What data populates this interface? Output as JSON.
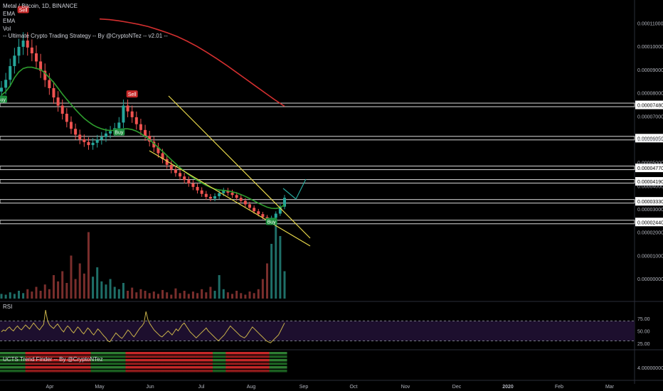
{
  "header": {
    "symbol_line": "Metal / Bitcoin, 1D, BINANCE",
    "indicator_1": "EMA",
    "indicator_2": "EMA",
    "indicator_3": "Vol",
    "indicator_4": "-- Ultimate Crypto Trading Strategy -- By @CryptoNTez -- v2.01 --"
  },
  "panes": {
    "rsi_label": "RSI",
    "trend_label": "UCTS Trend Finder -- By @CryptoNTez"
  },
  "colors": {
    "background": "#000000",
    "up": "#26a69a",
    "down": "#ef5350",
    "ema_fast": "#2e9e2e",
    "ema_slow": "#d32f2f",
    "wedge": "#e8d84a",
    "rsi_line": "#c9b24a",
    "rsi_band": "#1d0f2e",
    "buy_badge": "#1e8e3e",
    "sell_badge": "#c62828",
    "text": "#d1d4dc"
  },
  "chart_data": {
    "type": "candlestick",
    "x_labels": [
      "Apr",
      "May",
      "Jun",
      "Jul",
      "Aug",
      "Sep",
      "Oct",
      "Nov",
      "Dec",
      "2020",
      "Feb",
      "Mar"
    ],
    "price_axis": {
      "tick_labels": [
        "0.00011000",
        "0.00010000",
        "0.00009000",
        "0.00008000",
        "0.00007000",
        "0.00006000",
        "0.00005000",
        "0.00004000",
        "0.00003000",
        "0.00002000",
        "0.00001000",
        "0.00000000"
      ],
      "tick_values": [
        0.00011,
        0.0001,
        9e-05,
        8e-05,
        7e-05,
        6e-05,
        5e-05,
        4e-05,
        3e-05,
        2e-05,
        1e-05,
        0.0
      ],
      "range": [
        0.0,
        0.000112
      ]
    },
    "horizontal_levels": [
      {
        "label": "0.00007480",
        "value": 7.48e-05
      },
      {
        "label": "0.00006050",
        "value": 6.05e-05
      },
      {
        "label": "0.00004770",
        "value": 4.77e-05
      },
      {
        "label": "0.00004190",
        "value": 4.19e-05
      },
      {
        "label": "0.00003330",
        "value": 3.33e-05
      },
      {
        "label": "0.00002440",
        "value": 2.44e-05
      }
    ],
    "close_series": [
      8.22e-05,
      8.56e-05,
      9.15e-05,
      9.6e-05,
      9.98e-05,
      0.0001025,
      9.95e-05,
      9.7e-05,
      9.35e-05,
      8.95e-05,
      8.55e-05,
      8.2e-05,
      7.8e-05,
      7.45e-05,
      7.1e-05,
      6.75e-05,
      6.45e-05,
      6.2e-05,
      6e-05,
      5.88e-05,
      5.75e-05,
      5.85e-05,
      5.98e-05,
      6.1e-05,
      6.25e-05,
      6.35e-05,
      6.48e-05,
      6.72e-05,
      7.45e-05,
      7.2e-05,
      6.95e-05,
      6.65e-05,
      6.4e-05,
      6.15e-05,
      5.9e-05,
      5.65e-05,
      5.4e-05,
      5.15e-05,
      4.9e-05,
      4.7e-05,
      4.55e-05,
      4.4e-05,
      4.25e-05,
      4.1e-05,
      3.95e-05,
      3.8e-05,
      3.65e-05,
      3.52e-05,
      3.45e-05,
      3.55e-05,
      3.68e-05,
      3.78e-05,
      3.7e-05,
      3.6e-05,
      3.48e-05,
      3.35e-05,
      3.2e-05,
      3.05e-05,
      2.9e-05,
      2.78e-05,
      2.65e-05,
      2.58e-05,
      2.62e-05,
      2.8e-05,
      3.1e-05,
      3.48e-05
    ],
    "ema_fast_series": [
      7.9e-05,
      8.05e-05,
      8.3e-05,
      8.65e-05,
      8.9e-05,
      9.05e-05,
      9.1e-05,
      9.1e-05,
      9.05e-05,
      9e-05,
      8.85e-05,
      8.65e-05,
      8.45e-05,
      8.2e-05,
      7.95e-05,
      7.72e-05,
      7.5e-05,
      7.28e-05,
      7.08e-05,
      6.9e-05,
      6.75e-05,
      6.62e-05,
      6.52e-05,
      6.45e-05,
      6.4e-05,
      6.38e-05,
      6.38e-05,
      6.4e-05,
      6.45e-05,
      6.45e-05,
      6.42e-05,
      6.35e-05,
      6.25e-05,
      6.12e-05,
      5.98e-05,
      5.82e-05,
      5.65e-05,
      5.48e-05,
      5.3e-05,
      5.12e-05,
      4.95e-05,
      4.78e-05,
      4.62e-05,
      4.48e-05,
      4.35e-05,
      4.23e-05,
      4.12e-05,
      4.02e-05,
      3.93e-05,
      3.86e-05,
      3.82e-05,
      3.8e-05,
      3.78e-05,
      3.74e-05,
      3.69e-05,
      3.62e-05,
      3.54e-05,
      3.45e-05,
      3.35e-05,
      3.25e-05,
      3.16e-05,
      3.08e-05,
      3.03e-05,
      3.02e-05,
      3.06e-05,
      3.18e-05
    ],
    "ema_slow_series": [
      0.0001118,
      0.0001115,
      0.000111,
      0.0001103,
      0.0001095,
      0.0001085,
      0.0001072,
      0.0001058,
      0.0001042,
      0.0001022,
      0.0001,
      9.75e-05,
      9.48e-05,
      9.2e-05,
      8.9e-05,
      8.6e-05,
      8.3e-05,
      8e-05,
      7.7e-05,
      7.42e-05
    ],
    "volume_series": [
      0.06,
      0.05,
      0.08,
      0.06,
      0.1,
      0.07,
      0.12,
      0.09,
      0.15,
      0.1,
      0.18,
      0.12,
      0.3,
      0.22,
      0.35,
      0.2,
      0.55,
      0.25,
      0.45,
      0.32,
      0.85,
      0.28,
      0.4,
      0.22,
      0.18,
      0.25,
      0.15,
      0.12,
      0.2,
      0.1,
      0.14,
      0.08,
      0.12,
      0.1,
      0.07,
      0.09,
      0.06,
      0.11,
      0.08,
      0.05,
      0.13,
      0.07,
      0.1,
      0.06,
      0.09,
      0.07,
      0.12,
      0.08,
      0.15,
      0.1,
      0.3,
      0.12,
      0.08,
      0.06,
      0.1,
      0.07,
      0.05,
      0.09,
      0.07,
      0.12,
      0.25,
      0.45,
      0.7,
      0.95,
      0.8,
      0.35
    ],
    "rsi_axis": {
      "tick_labels": [
        "75.00",
        "50.00",
        "25.00"
      ],
      "upper": 70,
      "lower": 30
    },
    "rsi_series": [
      48,
      52,
      50,
      55,
      58,
      53,
      50,
      56,
      60,
      55,
      52,
      57,
      62,
      58,
      54,
      60,
      66,
      61,
      56,
      52,
      58,
      63,
      92,
      70,
      62,
      58,
      55,
      60,
      64,
      58,
      52,
      48,
      55,
      60,
      56,
      50,
      46,
      52,
      58,
      54,
      48,
      44,
      50,
      56,
      52,
      46,
      42,
      48,
      54,
      50,
      45,
      40,
      36,
      30,
      28,
      34,
      40,
      46,
      42,
      38,
      35,
      40,
      46,
      52,
      48,
      42,
      38,
      44,
      50,
      56,
      60,
      66,
      89,
      72,
      64,
      58,
      52,
      48,
      44,
      40,
      38,
      42,
      46,
      50,
      46,
      42,
      48,
      54,
      50,
      56,
      62,
      66,
      60,
      54,
      48,
      44,
      40,
      36,
      40,
      44,
      48,
      52,
      56,
      50,
      46,
      42,
      38,
      34,
      30,
      34,
      38,
      42,
      48,
      54,
      60,
      56,
      52,
      48,
      44,
      40,
      38,
      36,
      40,
      46,
      52,
      58,
      54,
      50,
      46,
      42,
      38,
      34,
      30,
      28,
      26,
      30,
      34,
      38,
      42,
      50,
      58,
      66
    ],
    "trend_axis": {
      "tick_labels": [
        "4.00000000"
      ]
    },
    "signals": [
      {
        "label": "Sell",
        "index": 5
      },
      {
        "label": "Buy",
        "index": 0
      },
      {
        "label": "Buy",
        "index": 27
      },
      {
        "label": "Sell",
        "index": 30
      },
      {
        "label": "Buy",
        "index": 62
      }
    ]
  }
}
